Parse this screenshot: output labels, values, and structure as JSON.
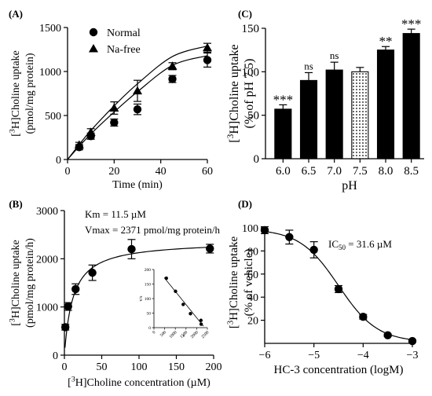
{
  "chart_data": [
    {
      "panel": "(A)",
      "type": "line",
      "xlabel": "Time (min)",
      "ylabel_line1": "[3H]Choline uptake",
      "ylabel_line2": "(pmol/mg protein)",
      "xlim": [
        0,
        60
      ],
      "ylim": [
        0,
        1500
      ],
      "xticks": [
        0,
        20,
        40,
        60
      ],
      "yticks": [
        0,
        500,
        1000,
        1500
      ],
      "legend_position": "top-left",
      "series": [
        {
          "name": "Normal",
          "marker": "circle",
          "x": [
            5,
            10,
            20,
            30,
            45,
            60
          ],
          "y": [
            140,
            265,
            420,
            570,
            915,
            1130
          ],
          "err": [
            30,
            35,
            40,
            60,
            40,
            80
          ],
          "fit_y": [
            0,
            150,
            290,
            540,
            770,
            1070,
            1180
          ]
        },
        {
          "name": "Na-free",
          "marker": "triangle",
          "x": [
            5,
            10,
            20,
            30,
            45,
            60
          ],
          "y": [
            165,
            310,
            585,
            780,
            1060,
            1270
          ],
          "err": [
            30,
            40,
            70,
            120,
            40,
            50
          ],
          "fit_y": [
            0,
            170,
            330,
            610,
            860,
            1170,
            1290
          ]
        }
      ],
      "fit_x": [
        0,
        5,
        10,
        20,
        30,
        45,
        60
      ]
    },
    {
      "panel": "(B)",
      "type": "scatter",
      "xlabel": "[3H]Choline concentration (µM)",
      "ylabel_line1": "[3H]Choline uptake",
      "ylabel_line2": "(pmol/mg protein/h)",
      "xlim": [
        0,
        200
      ],
      "ylim": [
        0,
        3000
      ],
      "xticks": [
        0,
        50,
        100,
        150,
        200
      ],
      "yticks": [
        0,
        1000,
        2000,
        3000
      ],
      "annotations": [
        "Km = 11.5 µM",
        "Vmax = 2371 pmol/mg protein/h"
      ],
      "x": [
        1.25,
        5,
        15,
        37.5,
        90,
        195
      ],
      "y": [
        580,
        1010,
        1370,
        1710,
        2200,
        2210
      ],
      "err": [
        60,
        80,
        110,
        160,
        200,
        90
      ],
      "inset": {
        "type": "scatter",
        "xlabel": "v",
        "ylabel": "v/s",
        "xlim": [
          0,
          2500
        ],
        "ylim": [
          0,
          200
        ],
        "xticks": [
          0,
          500,
          1000,
          1500,
          2000,
          2500
        ],
        "yticks": [
          0,
          50,
          100,
          150,
          200
        ],
        "x": [
          580,
          1010,
          1370,
          1710,
          2200,
          2210
        ],
        "y": [
          170,
          125,
          80,
          48,
          25,
          12
        ]
      }
    },
    {
      "panel": "(C)",
      "type": "bar",
      "xlabel": "pH",
      "ylabel_line1": "[3H]Choline uptake",
      "ylabel_line2": "(% of pH 7.5)",
      "ylim": [
        0,
        150
      ],
      "yticks": [
        0,
        50,
        100,
        150
      ],
      "categories": [
        "6.0",
        "6.5",
        "7.0",
        "7.5",
        "8.0",
        "8.5"
      ],
      "values": [
        57,
        90,
        102,
        100,
        125,
        144
      ],
      "err": [
        5,
        9,
        9,
        5,
        4,
        5
      ],
      "significance": [
        "***",
        "ns",
        "ns",
        "",
        "**",
        "***"
      ],
      "fills": [
        "solid",
        "solid",
        "solid",
        "dotted",
        "solid",
        "solid"
      ]
    },
    {
      "panel": "(D)",
      "type": "scatter",
      "xlabel": "HC-3 concentration (logM)",
      "ylabel_line1": "[3H]Choline uptake",
      "ylabel_line2": "(% of vehicle)",
      "xlim": [
        -6,
        -3
      ],
      "ylim": [
        0,
        100
      ],
      "xticks": [
        -6,
        -5,
        -4,
        -3
      ],
      "yticks": [
        20,
        40,
        60,
        80,
        100
      ],
      "annotation": "IC50 = 31.6 µM",
      "x": [
        -6,
        -5.5,
        -5,
        -4.5,
        -4,
        -3.5,
        -3
      ],
      "y": [
        98,
        92,
        81,
        47,
        23,
        7,
        2
      ],
      "err": [
        3,
        6,
        7,
        3,
        2,
        1,
        1
      ],
      "ic50_log": -4.5
    }
  ],
  "colors": {
    "ink": "#000000",
    "bar_fill": "#000000",
    "dotted_fill": "#ffffff"
  }
}
